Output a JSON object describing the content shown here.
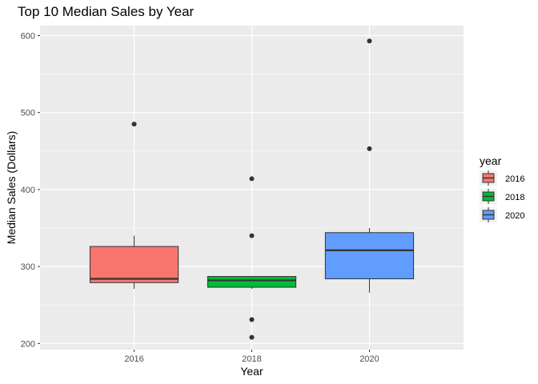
{
  "chart_data": {
    "type": "boxplot",
    "title": "Top 10 Median Sales by Year",
    "xlabel": "Year",
    "ylabel": "Median Sales (Dollars)",
    "categories": [
      "2016",
      "2018",
      "2020"
    ],
    "ylim": [
      192,
      613
    ],
    "y_ticks": [
      200,
      300,
      400,
      500,
      600
    ],
    "y_tick_labels": [
      "200",
      "300",
      "400",
      "500",
      "600"
    ],
    "grid": true,
    "legend": {
      "title": "year",
      "placement": "right",
      "items": [
        {
          "label": "2016",
          "color": "#F8766D"
        },
        {
          "label": "2018",
          "color": "#00BA38"
        },
        {
          "label": "2020",
          "color": "#619CFF"
        }
      ]
    },
    "boxes": [
      {
        "category": "2016",
        "color": "#F8766D",
        "q1": 279,
        "median": 284,
        "q3": 326,
        "whisker_low": 271,
        "whisker_high": 340,
        "outliers": [
          485
        ]
      },
      {
        "category": "2018",
        "color": "#00BA38",
        "q1": 273,
        "median": 282,
        "q3": 287,
        "whisker_low": 271,
        "whisker_high": 287,
        "outliers": [
          414,
          340,
          231,
          208
        ]
      },
      {
        "category": "2020",
        "color": "#619CFF",
        "q1": 284,
        "median": 321,
        "q3": 344,
        "whisker_low": 266,
        "whisker_high": 350,
        "outliers": [
          593,
          453
        ]
      }
    ]
  }
}
